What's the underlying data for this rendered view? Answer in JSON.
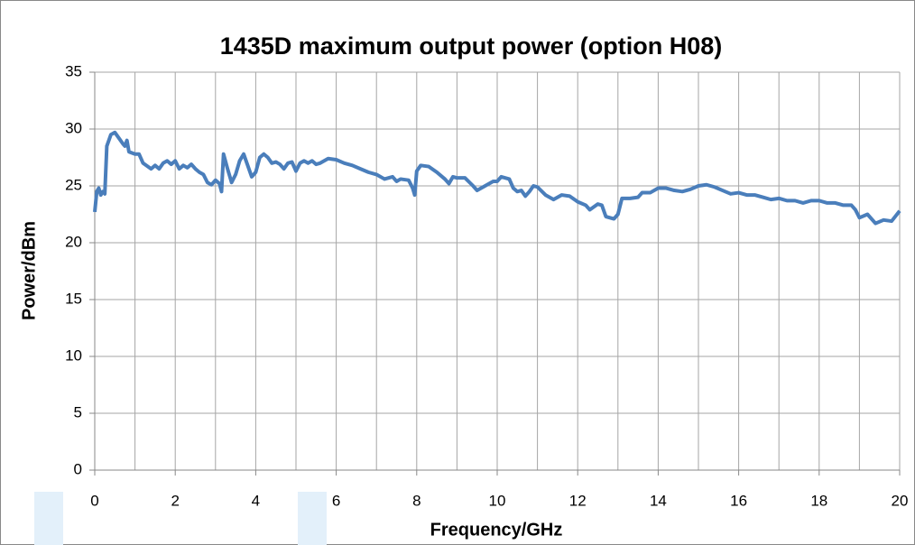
{
  "chart_data": {
    "type": "line",
    "title": "1435D maximum output power (option H08)",
    "xlabel": "Frequency/GHz",
    "ylabel": "Power/dBm",
    "xlim": [
      0,
      20
    ],
    "xticks": [
      0,
      2,
      4,
      6,
      8,
      10,
      12,
      14,
      16,
      18,
      20
    ],
    "x_minor_ticks": [
      1,
      3,
      5,
      7,
      9,
      11,
      13,
      15,
      17,
      19
    ],
    "ylim": [
      0,
      35
    ],
    "yticks": [
      0,
      5,
      10,
      15,
      20,
      25,
      30,
      35
    ],
    "grid": true,
    "x": [
      0,
      0.05,
      0.1,
      0.15,
      0.2,
      0.25,
      0.3,
      0.4,
      0.5,
      0.6,
      0.7,
      0.75,
      0.8,
      0.85,
      1.0,
      1.1,
      1.2,
      1.4,
      1.5,
      1.6,
      1.7,
      1.8,
      1.9,
      2.0,
      2.1,
      2.2,
      2.3,
      2.4,
      2.5,
      2.6,
      2.7,
      2.8,
      2.9,
      3.0,
      3.1,
      3.15,
      3.2,
      3.3,
      3.4,
      3.5,
      3.6,
      3.7,
      3.8,
      3.9,
      4.0,
      4.1,
      4.2,
      4.3,
      4.4,
      4.5,
      4.6,
      4.7,
      4.8,
      4.9,
      5.0,
      5.1,
      5.2,
      5.3,
      5.4,
      5.5,
      5.6,
      5.7,
      5.8,
      6.0,
      6.2,
      6.4,
      6.6,
      6.8,
      7.0,
      7.2,
      7.4,
      7.5,
      7.6,
      7.8,
      7.9,
      7.95,
      8.0,
      8.1,
      8.3,
      8.5,
      8.7,
      8.8,
      8.9,
      9.0,
      9.2,
      9.4,
      9.5,
      9.7,
      9.9,
      10.0,
      10.1,
      10.3,
      10.4,
      10.5,
      10.6,
      10.7,
      10.8,
      10.9,
      11.0,
      11.2,
      11.4,
      11.6,
      11.8,
      12.0,
      12.2,
      12.3,
      12.5,
      12.6,
      12.7,
      12.9,
      13.0,
      13.1,
      13.3,
      13.5,
      13.6,
      13.8,
      14.0,
      14.2,
      14.4,
      14.6,
      14.8,
      15.0,
      15.2,
      15.4,
      15.6,
      15.8,
      16.0,
      16.2,
      16.4,
      16.6,
      16.8,
      17.0,
      17.2,
      17.4,
      17.6,
      17.8,
      18.0,
      18.2,
      18.4,
      18.6,
      18.8,
      18.9,
      19.0,
      19.2,
      19.4,
      19.6,
      19.8,
      20.0
    ],
    "series": [
      {
        "name": "Power",
        "color": "#4a7ebb",
        "values": [
          22.7,
          24.5,
          24.8,
          24.2,
          24.5,
          24.3,
          28.5,
          29.5,
          29.7,
          29.2,
          28.7,
          28.5,
          29.0,
          28.0,
          27.8,
          27.8,
          27.0,
          26.5,
          26.8,
          26.5,
          27.0,
          27.2,
          26.9,
          27.2,
          26.5,
          26.8,
          26.6,
          26.9,
          26.5,
          26.2,
          26.0,
          25.3,
          25.1,
          25.5,
          25.2,
          24.5,
          27.8,
          26.5,
          25.3,
          26.0,
          27.2,
          27.8,
          26.8,
          25.8,
          26.2,
          27.5,
          27.8,
          27.5,
          27.0,
          27.1,
          26.9,
          26.5,
          27.0,
          27.1,
          26.3,
          27.0,
          27.2,
          27.0,
          27.2,
          26.9,
          27.0,
          27.2,
          27.4,
          27.3,
          27.0,
          26.8,
          26.5,
          26.2,
          26.0,
          25.6,
          25.8,
          25.4,
          25.6,
          25.5,
          24.8,
          24.2,
          26.3,
          26.8,
          26.7,
          26.2,
          25.6,
          25.2,
          25.8,
          25.7,
          25.7,
          25.0,
          24.6,
          25.0,
          25.4,
          25.4,
          25.8,
          25.6,
          24.8,
          24.5,
          24.6,
          24.1,
          24.5,
          25.0,
          24.9,
          24.2,
          23.8,
          24.2,
          24.1,
          23.6,
          23.3,
          22.9,
          23.4,
          23.3,
          22.3,
          22.1,
          22.5,
          23.9,
          23.9,
          24.0,
          24.4,
          24.4,
          24.8,
          24.8,
          24.6,
          24.5,
          24.7,
          25.0,
          25.1,
          24.9,
          24.6,
          24.3,
          24.4,
          24.2,
          24.2,
          24.0,
          23.8,
          23.9,
          23.7,
          23.7,
          23.5,
          23.7,
          23.7,
          23.5,
          23.5,
          23.3,
          23.3,
          22.9,
          22.2,
          22.5,
          21.7,
          22.0,
          21.9,
          22.8
        ]
      }
    ]
  }
}
